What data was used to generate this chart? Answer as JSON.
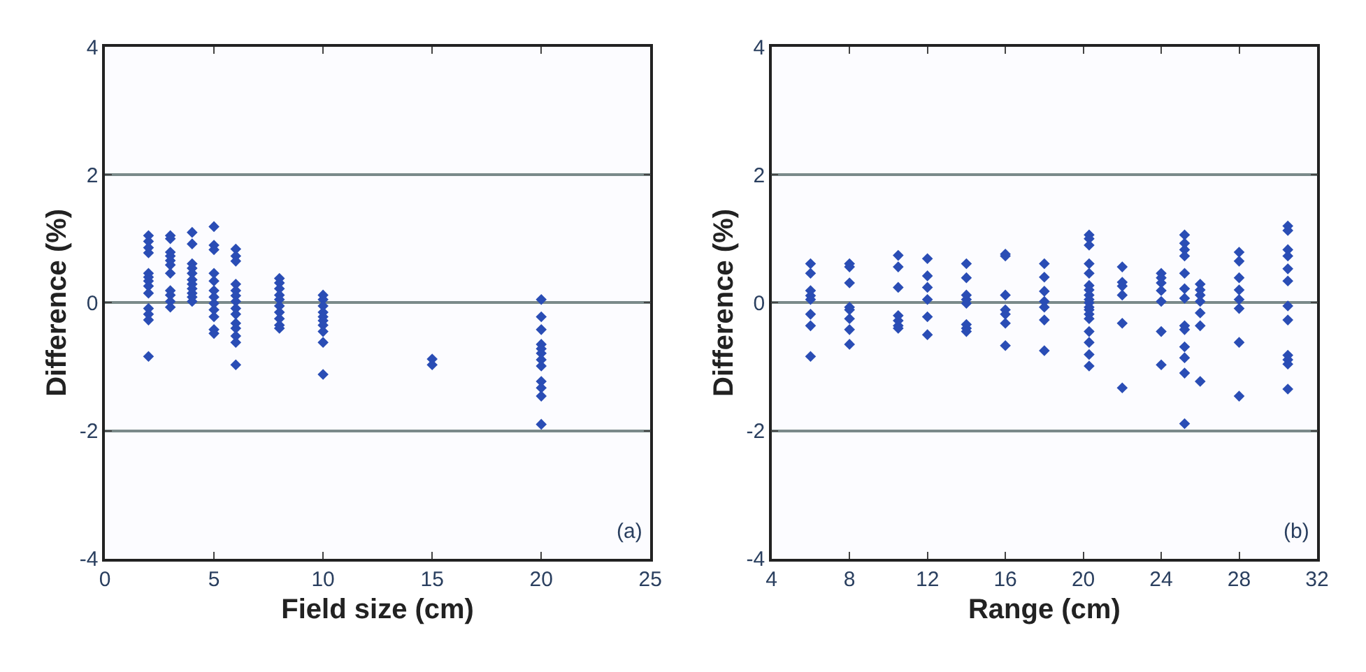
{
  "chart_data": [
    {
      "type": "scatter",
      "xlabel": "Field size (cm)",
      "ylabel": "Difference (%)",
      "xlim": [
        0,
        25
      ],
      "xticks": [
        0,
        5,
        10,
        15,
        20,
        25
      ],
      "ylim": [
        -4,
        4
      ],
      "yticks": [
        -4,
        -2,
        0,
        2,
        4
      ],
      "grid": "y",
      "marker": "diamond",
      "annotations": [
        "(a)"
      ],
      "series": [
        {
          "color": "#2a4db5",
          "x": [
            2,
            2,
            2,
            2,
            2,
            2,
            2,
            2,
            2,
            2,
            2,
            2,
            2,
            3,
            3,
            3,
            3,
            3,
            3,
            3,
            3,
            3,
            3,
            3,
            4,
            4,
            4,
            4,
            4,
            4,
            4,
            4,
            4,
            4,
            4,
            5,
            5,
            5,
            5,
            5,
            5,
            5,
            5,
            5,
            5,
            5,
            5,
            6,
            6,
            6,
            6,
            6,
            6,
            6,
            6,
            6,
            6,
            6,
            6,
            6,
            6,
            8,
            8,
            8,
            8,
            8,
            8,
            8,
            8,
            8,
            8,
            10,
            10,
            10,
            10,
            10,
            10,
            10,
            10,
            10,
            10,
            15,
            15,
            20,
            20,
            20,
            20,
            20,
            20,
            20,
            20,
            20,
            20,
            20,
            20
          ],
          "values": [
            1.05,
            0.96,
            0.86,
            0.78,
            0.46,
            0.4,
            0.34,
            0.26,
            0.15,
            -0.09,
            -0.18,
            -0.27,
            -0.84,
            1.05,
            1.0,
            0.79,
            0.73,
            0.66,
            0.59,
            0.46,
            0.19,
            0.12,
            0.02,
            -0.07,
            1.1,
            0.92,
            0.61,
            0.54,
            0.46,
            0.36,
            0.29,
            0.22,
            0.15,
            0.09,
            0.02,
            1.19,
            0.9,
            0.83,
            0.46,
            0.34,
            0.19,
            0.09,
            -0.01,
            -0.11,
            -0.22,
            -0.42,
            -0.48,
            0.84,
            0.73,
            0.65,
            0.29,
            0.19,
            0.11,
            0.02,
            -0.09,
            -0.18,
            -0.32,
            -0.4,
            -0.52,
            -0.62,
            -0.97,
            0.38,
            0.31,
            0.22,
            0.12,
            0.05,
            -0.05,
            -0.15,
            -0.25,
            -0.35,
            -0.4,
            0.12,
            0.05,
            -0.05,
            -0.15,
            -0.22,
            -0.28,
            -0.35,
            -0.45,
            -0.62,
            -1.12,
            -0.88,
            -0.97,
            0.05,
            -0.22,
            -0.42,
            -0.65,
            -0.72,
            -0.79,
            -0.89,
            -0.99,
            -1.23,
            -1.33,
            -1.46,
            -1.9
          ]
        }
      ]
    },
    {
      "type": "scatter",
      "xlabel": "Range (cm)",
      "ylabel": "Difference (%)",
      "xlim": [
        4,
        32
      ],
      "xticks": [
        4,
        8,
        12,
        16,
        20,
        24,
        28,
        32
      ],
      "ylim": [
        -4,
        4
      ],
      "yticks": [
        -4,
        -2,
        0,
        2,
        4
      ],
      "grid": "y",
      "marker": "diamond",
      "annotations": [
        "(b)"
      ],
      "series": [
        {
          "color": "#2a4db5",
          "x": [
            6,
            6,
            6,
            6,
            6,
            6,
            6,
            6,
            8,
            8,
            8,
            8,
            8,
            8,
            8,
            8,
            10.5,
            10.5,
            10.5,
            10.5,
            10.5,
            10.5,
            10.5,
            12,
            12,
            12,
            12,
            12,
            12,
            14,
            14,
            14,
            14,
            14,
            14,
            14,
            14,
            16,
            16,
            16,
            16,
            16,
            16,
            16,
            18,
            18,
            18,
            18,
            18,
            18,
            18,
            20.3,
            20.3,
            20.3,
            20.3,
            20.3,
            20.3,
            20.3,
            20.3,
            20.3,
            20.3,
            20.3,
            20.3,
            20.3,
            20.3,
            20.3,
            20.3,
            20.3,
            20.3,
            22,
            22,
            22,
            22,
            22,
            22,
            24,
            24,
            24,
            24,
            24,
            24,
            24,
            25.2,
            25.2,
            25.2,
            25.2,
            25.2,
            25.2,
            25.2,
            25.2,
            25.2,
            25.2,
            25.2,
            25.2,
            25.2,
            26,
            26,
            26,
            26,
            26,
            26,
            26,
            28,
            28,
            28,
            28,
            28,
            28,
            28,
            28,
            30.5,
            30.5,
            30.5,
            30.5,
            30.5,
            30.5,
            30.5,
            30.5,
            30.5,
            30.5,
            30.5,
            30.5
          ],
          "values": [
            0.61,
            0.46,
            0.19,
            0.11,
            0.05,
            -0.18,
            -0.36,
            -0.84,
            0.61,
            0.56,
            0.31,
            -0.07,
            -0.11,
            -0.25,
            -0.42,
            -0.65,
            0.74,
            0.56,
            0.24,
            -0.2,
            -0.28,
            -0.36,
            -0.4,
            0.69,
            0.42,
            0.24,
            0.05,
            -0.22,
            -0.5,
            0.61,
            0.39,
            0.12,
            0.05,
            -0.01,
            -0.34,
            -0.4,
            -0.45,
            0.76,
            0.73,
            0.12,
            -0.11,
            -0.18,
            -0.32,
            -0.67,
            0.61,
            0.4,
            0.18,
            0.02,
            -0.07,
            -0.27,
            -0.75,
            1.06,
            1.0,
            0.9,
            0.61,
            0.46,
            0.27,
            0.2,
            0.12,
            0.05,
            0,
            -0.07,
            -0.11,
            -0.18,
            -0.25,
            -0.45,
            -0.62,
            -0.81,
            -0.99,
            0.56,
            0.32,
            0.26,
            0.12,
            -0.32,
            -1.33,
            0.46,
            0.39,
            0.31,
            0.19,
            0.02,
            -0.45,
            -0.97,
            1.06,
            0.93,
            0.83,
            0.73,
            0.46,
            0.22,
            0.07,
            -0.36,
            -0.42,
            -0.69,
            -0.86,
            -1.1,
            -1.89,
            0.29,
            0.2,
            0.12,
            0.02,
            -0.16,
            -0.36,
            -1.23,
            0.79,
            0.65,
            0.39,
            0.2,
            0.05,
            -0.09,
            -0.62,
            -1.46,
            1.2,
            1.13,
            0.83,
            0.73,
            0.53,
            0.34,
            -0.05,
            -0.27,
            -0.82,
            -0.89,
            -0.96,
            -1.35
          ]
        }
      ]
    }
  ]
}
